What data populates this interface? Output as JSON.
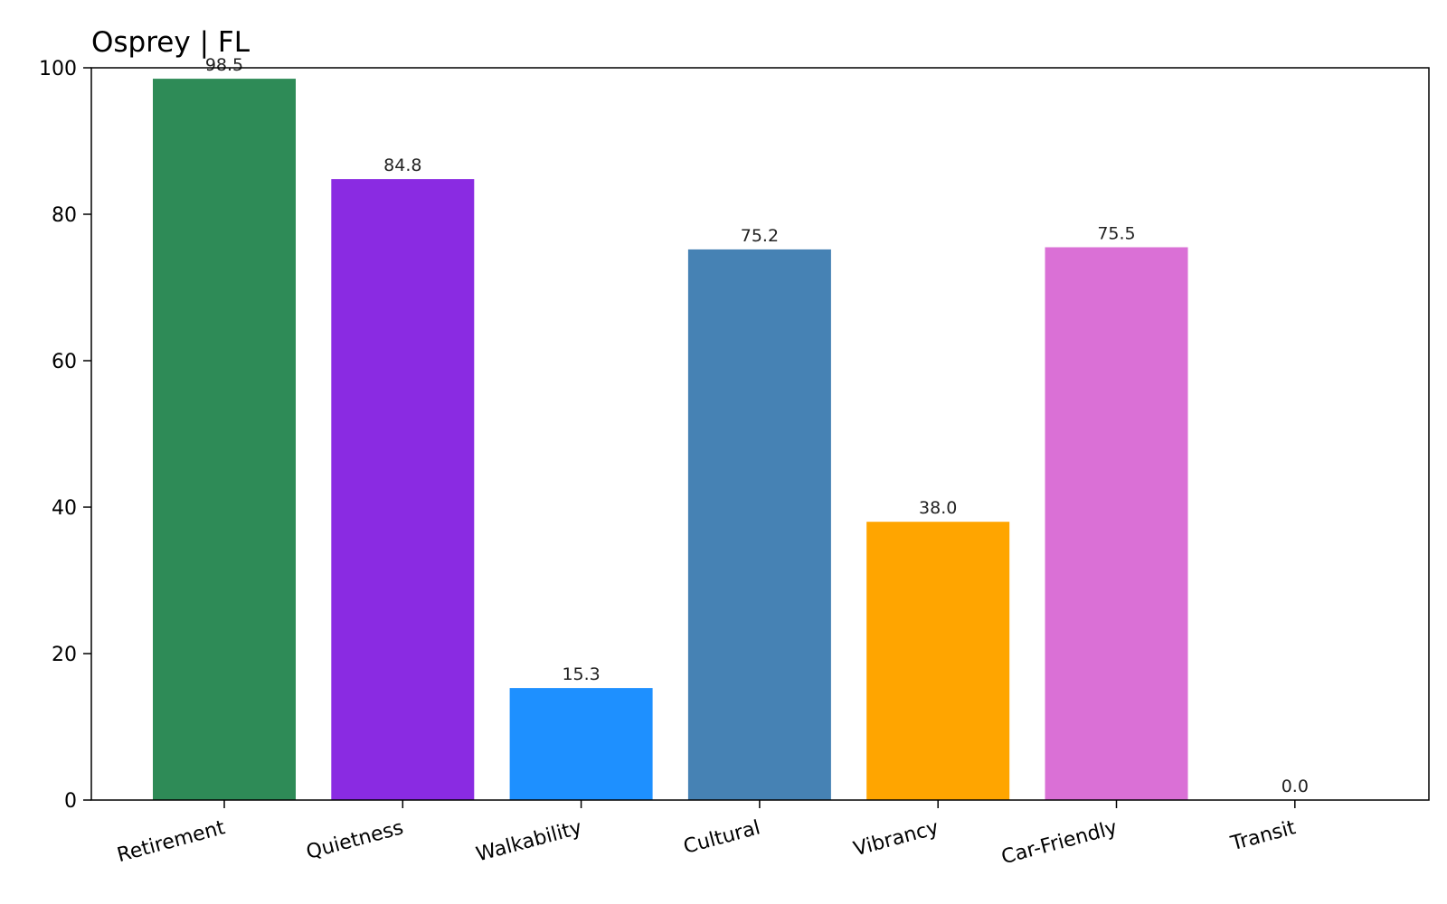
{
  "chart_data": {
    "type": "bar",
    "title": "Osprey | FL",
    "xlabel": "",
    "ylabel": "",
    "categories": [
      "Retirement",
      "Quietness",
      "Walkability",
      "Cultural",
      "Vibrancy",
      "Car-Friendly",
      "Transit"
    ],
    "values": [
      98.5,
      84.8,
      15.3,
      75.2,
      38.0,
      75.5,
      0.0
    ],
    "value_labels": [
      "98.5",
      "84.8",
      "15.3",
      "75.2",
      "38.0",
      "75.5",
      "0.0"
    ],
    "colors": [
      "#2E8B57",
      "#8A2BE2",
      "#1E90FF",
      "#4682B4",
      "#FFA500",
      "#DA70D6",
      "#808080"
    ],
    "ylim": [
      0,
      100
    ],
    "yticks": [
      0,
      20,
      40,
      60,
      80,
      100
    ],
    "ytick_labels": [
      "0",
      "20",
      "40",
      "60",
      "80",
      "100"
    ],
    "grid": false,
    "legend": "none",
    "xtick_rotation": "slanted"
  }
}
